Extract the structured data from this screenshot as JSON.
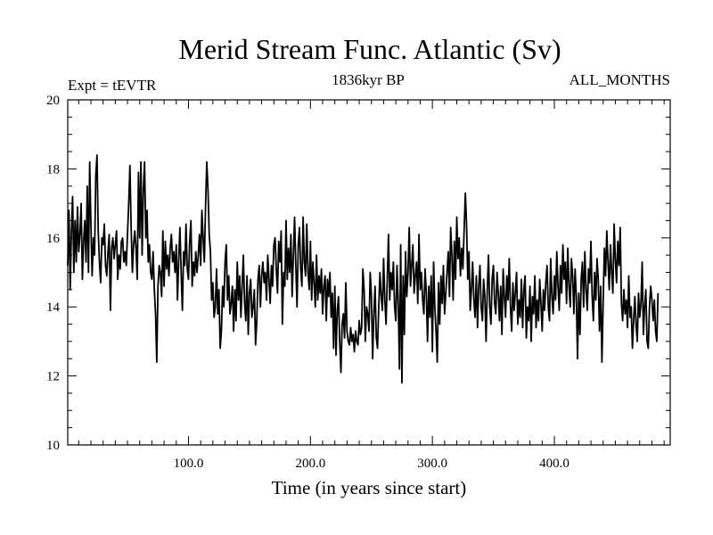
{
  "chart_data": {
    "type": "line",
    "title": "Merid Stream Func. Atlantic (Sv)",
    "subtitle_left": "Expt = tEVTR",
    "subtitle_center": "1836kyr BP",
    "subtitle_right": "ALL_MONTHS",
    "xlabel": "Time (in years since start)",
    "ylabel": "",
    "xlim": [
      1,
      495
    ],
    "ylim": [
      10,
      20
    ],
    "x_ticks": [
      100,
      200,
      300,
      400
    ],
    "x_tick_labels": [
      "100.0",
      "200.0",
      "300.0",
      "400.0"
    ],
    "y_ticks": [
      10,
      12,
      14,
      16,
      18,
      20
    ],
    "y_tick_labels": [
      "10",
      "12",
      "14",
      "16",
      "18",
      "20"
    ],
    "grid": false,
    "line_color": "#000000",
    "series": [
      {
        "name": "Merid Stream Func. Atlantic",
        "x_start": 1,
        "x_step": 1,
        "values": [
          15.2,
          16.8,
          14.5,
          16.2,
          17.2,
          15.0,
          16.5,
          15.3,
          16.9,
          15.6,
          16.1,
          17.0,
          14.8,
          15.9,
          16.5,
          15.3,
          17.5,
          15.0,
          18.2,
          16.4,
          14.9,
          16.0,
          15.5,
          17.8,
          18.4,
          16.2,
          15.3,
          14.7,
          16.0,
          15.8,
          16.4,
          15.2,
          14.9,
          15.6,
          16.1,
          13.9,
          15.7,
          16.0,
          15.4,
          15.8,
          16.2,
          14.8,
          15.5,
          15.1,
          15.9,
          16.0,
          15.3,
          15.6,
          15.2,
          16.1,
          17.0,
          18.1,
          16.3,
          15.0,
          15.8,
          16.2,
          15.7,
          14.8,
          17.9,
          16.0,
          18.2,
          15.5,
          17.4,
          18.2,
          16.0,
          16.8,
          15.3,
          15.8,
          15.0,
          14.8,
          15.6,
          14.5,
          13.8,
          12.4,
          14.6,
          15.2,
          15.0,
          14.3,
          16.2,
          14.6,
          15.9,
          15.1,
          15.5,
          14.9,
          15.7,
          16.1,
          15.3,
          15.6,
          15.0,
          15.8,
          14.2,
          15.4,
          16.3,
          15.0,
          13.9,
          15.6,
          15.2,
          16.4,
          15.1,
          14.8,
          15.9,
          16.5,
          14.6,
          15.3,
          14.9,
          15.6,
          15.0,
          15.5,
          16.1,
          15.2,
          16.8,
          16.0,
          15.3,
          16.9,
          18.2,
          17.4,
          16.1,
          15.6,
          14.2,
          14.7,
          13.7,
          14.0,
          15.1,
          13.8,
          14.5,
          12.8,
          13.3,
          14.6,
          14.0,
          15.3,
          15.8,
          14.2,
          14.9,
          13.8,
          14.1,
          14.6,
          13.3,
          14.5,
          13.6,
          15.3,
          14.2,
          14.9,
          13.7,
          14.6,
          15.5,
          14.1,
          13.6,
          14.9,
          13.2,
          14.4,
          14.8,
          13.7,
          14.0,
          14.5,
          12.9,
          13.6,
          14.8,
          15.2,
          14.0,
          14.9,
          15.3,
          14.7,
          15.0,
          14.2,
          15.5,
          14.8,
          14.1,
          15.2,
          14.6,
          15.8,
          16.0,
          15.1,
          14.4,
          15.9,
          15.3,
          16.2,
          13.5,
          15.0,
          14.6,
          16.5,
          14.8,
          15.7,
          15.0,
          16.1,
          14.3,
          15.5,
          16.6,
          15.2,
          14.0,
          15.8,
          16.3,
          15.1,
          14.6,
          16.6,
          15.3,
          14.9,
          16.4,
          15.0,
          14.5,
          15.9,
          14.2,
          15.3,
          14.7,
          14.0,
          15.5,
          14.2,
          14.9,
          14.4,
          15.1,
          13.8,
          14.6,
          14.9,
          13.6,
          14.8,
          14.3,
          15.0,
          13.7,
          14.4,
          12.8,
          14.6,
          12.6,
          13.9,
          14.3,
          13.0,
          12.1,
          13.5,
          13.8,
          13.1,
          14.7,
          13.3,
          13.0,
          12.9,
          13.4,
          13.0,
          13.2,
          12.7,
          13.3,
          13.0,
          12.9,
          13.6,
          13.2,
          13.4,
          15.1,
          14.5,
          13.0,
          14.0,
          13.8,
          13.3,
          15.0,
          14.3,
          12.5,
          13.8,
          14.6,
          13.1,
          12.8,
          14.0,
          15.0,
          14.3,
          13.9,
          15.4,
          14.2,
          13.5,
          14.8,
          16.1,
          14.2,
          15.0,
          14.5,
          15.3,
          14.0,
          13.6,
          15.2,
          14.1,
          12.2,
          15.8,
          11.8,
          14.9,
          13.2,
          15.6,
          14.3,
          15.0,
          16.3,
          14.6,
          15.2,
          15.8,
          14.4,
          14.9,
          15.3,
          14.1,
          16.1,
          14.5,
          15.0,
          14.2,
          13.8,
          15.1,
          14.4,
          13.0,
          14.6,
          13.7,
          14.9,
          12.7,
          15.3,
          14.0,
          13.3,
          12.4,
          14.7,
          13.5,
          14.9,
          14.1,
          15.2,
          13.8,
          14.4,
          15.0,
          15.6,
          14.3,
          16.3,
          15.5,
          14.2,
          15.9,
          14.8,
          16.6,
          15.4,
          16.0,
          14.9,
          15.7,
          15.1,
          16.2,
          17.3,
          16.4,
          14.8,
          15.6,
          13.9,
          14.5,
          15.3,
          14.2,
          13.7,
          14.9,
          13.4,
          14.6,
          15.2,
          14.0,
          13.6,
          14.8,
          14.3,
          13.0,
          14.5,
          15.5,
          14.0,
          13.5,
          14.8,
          15.2,
          14.1,
          13.8,
          15.0,
          14.4,
          13.6,
          14.6,
          13.2,
          15.1,
          14.3,
          13.7,
          14.9,
          14.2,
          15.4,
          14.0,
          13.3,
          14.7,
          13.9,
          14.4,
          15.0,
          13.5,
          14.2,
          13.7,
          14.8,
          13.4,
          14.5,
          14.9,
          13.1,
          14.0,
          13.6,
          14.6,
          13.0,
          14.3,
          13.8,
          14.9,
          13.4,
          14.2,
          13.6,
          14.8,
          14.1,
          13.3,
          14.5,
          13.9,
          14.7,
          15.2,
          14.0,
          13.6,
          15.4,
          14.3,
          13.8,
          14.9,
          14.2,
          15.6,
          14.6,
          13.9,
          15.2,
          14.4,
          15.8,
          14.8,
          15.3,
          14.1,
          15.7,
          14.6,
          14.0,
          15.4,
          14.9,
          13.8,
          15.1,
          14.3,
          12.5,
          14.4,
          13.2,
          14.8,
          15.3,
          14.0,
          15.6,
          14.5,
          13.9,
          15.1,
          14.7,
          15.9,
          14.3,
          13.6,
          15.0,
          14.2,
          15.4,
          14.8,
          13.3,
          14.6,
          12.4,
          14.1,
          15.7,
          14.9,
          16.2,
          15.3,
          14.5,
          15.8,
          15.0,
          14.4,
          16.4,
          15.4,
          14.7,
          15.9,
          15.2,
          16.3,
          14.1,
          13.6,
          14.5,
          13.8,
          14.2,
          13.4,
          14.9,
          13.7,
          14.0,
          12.8,
          13.6,
          14.3,
          13.5,
          13.0,
          14.4,
          13.7,
          14.1,
          15.3,
          13.2,
          14.0,
          14.5,
          13.0,
          12.8,
          14.0,
          14.6,
          14.2,
          13.6,
          14.2,
          13.3,
          13.0,
          14.4
        ]
      }
    ]
  }
}
